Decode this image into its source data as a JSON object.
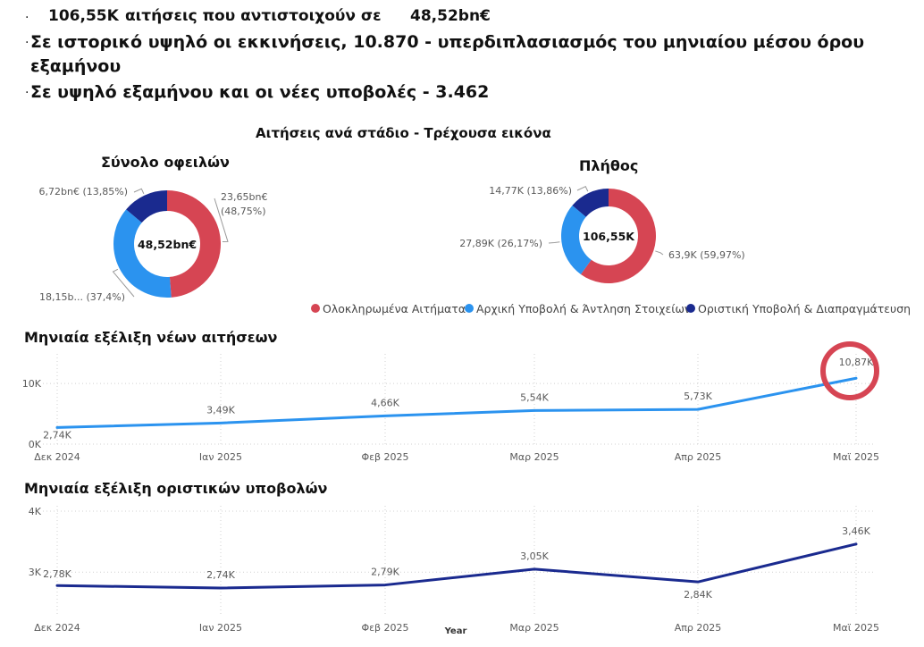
{
  "bullets": {
    "dot": "·",
    "line1_value": "106,55K",
    "line1_text": "αιτήσεις που αντιστοιχούν σε",
    "line1_amount": "48,52bn€",
    "line2_a": "Σε ιστορικό υψηλό οι εκκινήσεις, 10.870 -  υπερδιπλασιασμός του μηνιαίου μέσου όρου",
    "line2_b": "εξαμήνου",
    "line3": "Σε υψηλό εξαμήνου και οι νέες υποβολές - 3.462"
  },
  "colors": {
    "red": "#d64553",
    "light_blue": "#2b93ef",
    "dark_blue": "#1a2a8f",
    "highlight_circle": "#d64553",
    "grid": "#d0d0d0",
    "text_gray": "#5a5a5a"
  },
  "chart_data": [
    {
      "type": "pie",
      "variant": "donut",
      "title": "Σύνολο οφειλών",
      "center_label": "48,52bn€",
      "slices": [
        {
          "name": "Ολοκληρωμένα Αιτήματα",
          "value": 23.65,
          "percent": 48.75,
          "label_value": "23,65bn€",
          "label_percent": "(48,75%)",
          "color": "#d64553"
        },
        {
          "name": "Αρχική Υποβολή & Άντληση Στοιχείων",
          "value": 18.15,
          "percent": 37.4,
          "label": "18,15b... (37,4%)",
          "color": "#2b93ef"
        },
        {
          "name": "Οριστική Υποβολή & Διαπραγμάτευση",
          "value": 6.72,
          "percent": 13.85,
          "label": "6,72bn€ (13,85%)",
          "color": "#1a2a8f"
        }
      ]
    },
    {
      "type": "pie",
      "variant": "donut",
      "title": "Πλήθος",
      "center_label": "106,55K",
      "slices": [
        {
          "name": "Ολοκληρωμένα Αιτήματα",
          "value": 63.9,
          "percent": 59.97,
          "label": "63,9K (59,97%)",
          "color": "#d64553"
        },
        {
          "name": "Αρχική Υποβολή & Άντληση Στοιχείων",
          "value": 27.89,
          "percent": 26.17,
          "label": "27,89K (26,17%)",
          "color": "#2b93ef"
        },
        {
          "name": "Οριστική Υποβολή & Διαπραγμάτευση",
          "value": 14.77,
          "percent": 13.86,
          "label": "14,77K (13,86%)",
          "color": "#1a2a8f"
        }
      ]
    },
    {
      "type": "line",
      "title": "Μηνιαία εξέλιξη νέων αιτήσεων",
      "categories": [
        "Δεκ 2024",
        "Ιαν 2025",
        "Φεβ 2025",
        "Μαρ 2025",
        "Απρ 2025",
        "Μαϊ 2025"
      ],
      "series": [
        {
          "values": [
            2.74,
            3.49,
            4.66,
            5.54,
            5.73,
            10.87
          ],
          "color": "#2b93ef"
        }
      ],
      "data_labels": [
        "2,74K",
        "3,49K",
        "4,66K",
        "5,54K",
        "5,73K",
        "10,87K"
      ],
      "y_ticks": [
        {
          "value": 0,
          "label": "0K"
        },
        {
          "value": 10,
          "label": "10K"
        }
      ],
      "ylim": [
        0,
        14
      ],
      "unit": "K",
      "grid": true,
      "highlight_index": 5
    },
    {
      "type": "line",
      "title": "Μηνιαία εξέλιξη οριστικών υποβολών",
      "categories": [
        "Δεκ 2024",
        "Ιαν 2025",
        "Φεβ 2025",
        "Μαρ 2025",
        "Απρ 2025",
        "Μαϊ 2025"
      ],
      "series": [
        {
          "values": [
            2.78,
            2.74,
            2.79,
            3.05,
            2.84,
            3.46
          ],
          "color": "#1a2a8f"
        }
      ],
      "data_labels": [
        "2,78K",
        "2,74K",
        "2,79K",
        "3,05K",
        "2,84K",
        "3,46K"
      ],
      "y_ticks": [
        {
          "value": 3,
          "label": "3K"
        },
        {
          "value": 4,
          "label": "4K"
        }
      ],
      "ylim": [
        2.3,
        4.0
      ],
      "unit": "K",
      "grid": true,
      "xlabel": "Year"
    }
  ],
  "stage_title": "Αιτήσεις ανά στάδιο - Τρέχουσα εικόνα",
  "legend": {
    "items": [
      {
        "label": "Ολοκληρωμένα Αιτήματα",
        "color": "#d64553"
      },
      {
        "label": "Αρχική Υποβολή & Άντληση Στοιχείων",
        "color": "#2b93ef"
      },
      {
        "label": "Οριστική Υποβολή & Διαπραγμάτευση",
        "color": "#1a2a8f"
      }
    ]
  }
}
